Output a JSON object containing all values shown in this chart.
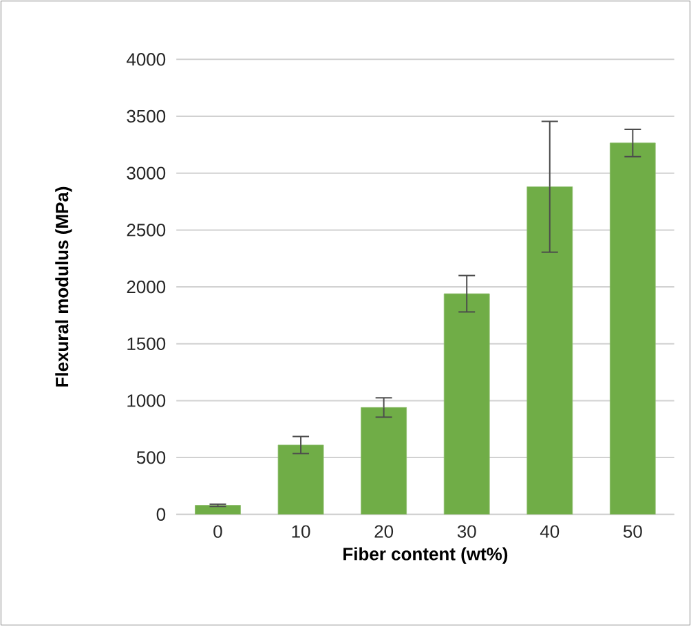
{
  "chart_data": {
    "type": "bar",
    "xlabel": "Fiber content (wt%)",
    "ylabel": "Flexural modulus (MPa)",
    "categories": [
      "0",
      "10",
      "20",
      "30",
      "40",
      "50"
    ],
    "values": [
      80,
      610,
      940,
      1940,
      2880,
      3265
    ],
    "errors": [
      10,
      75,
      85,
      160,
      575,
      120
    ],
    "color": "#70ad47",
    "ylim": [
      0,
      4000
    ],
    "yticks": [
      0,
      500,
      1000,
      1500,
      2000,
      2500,
      3000,
      3500,
      4000
    ],
    "grid": "y"
  }
}
